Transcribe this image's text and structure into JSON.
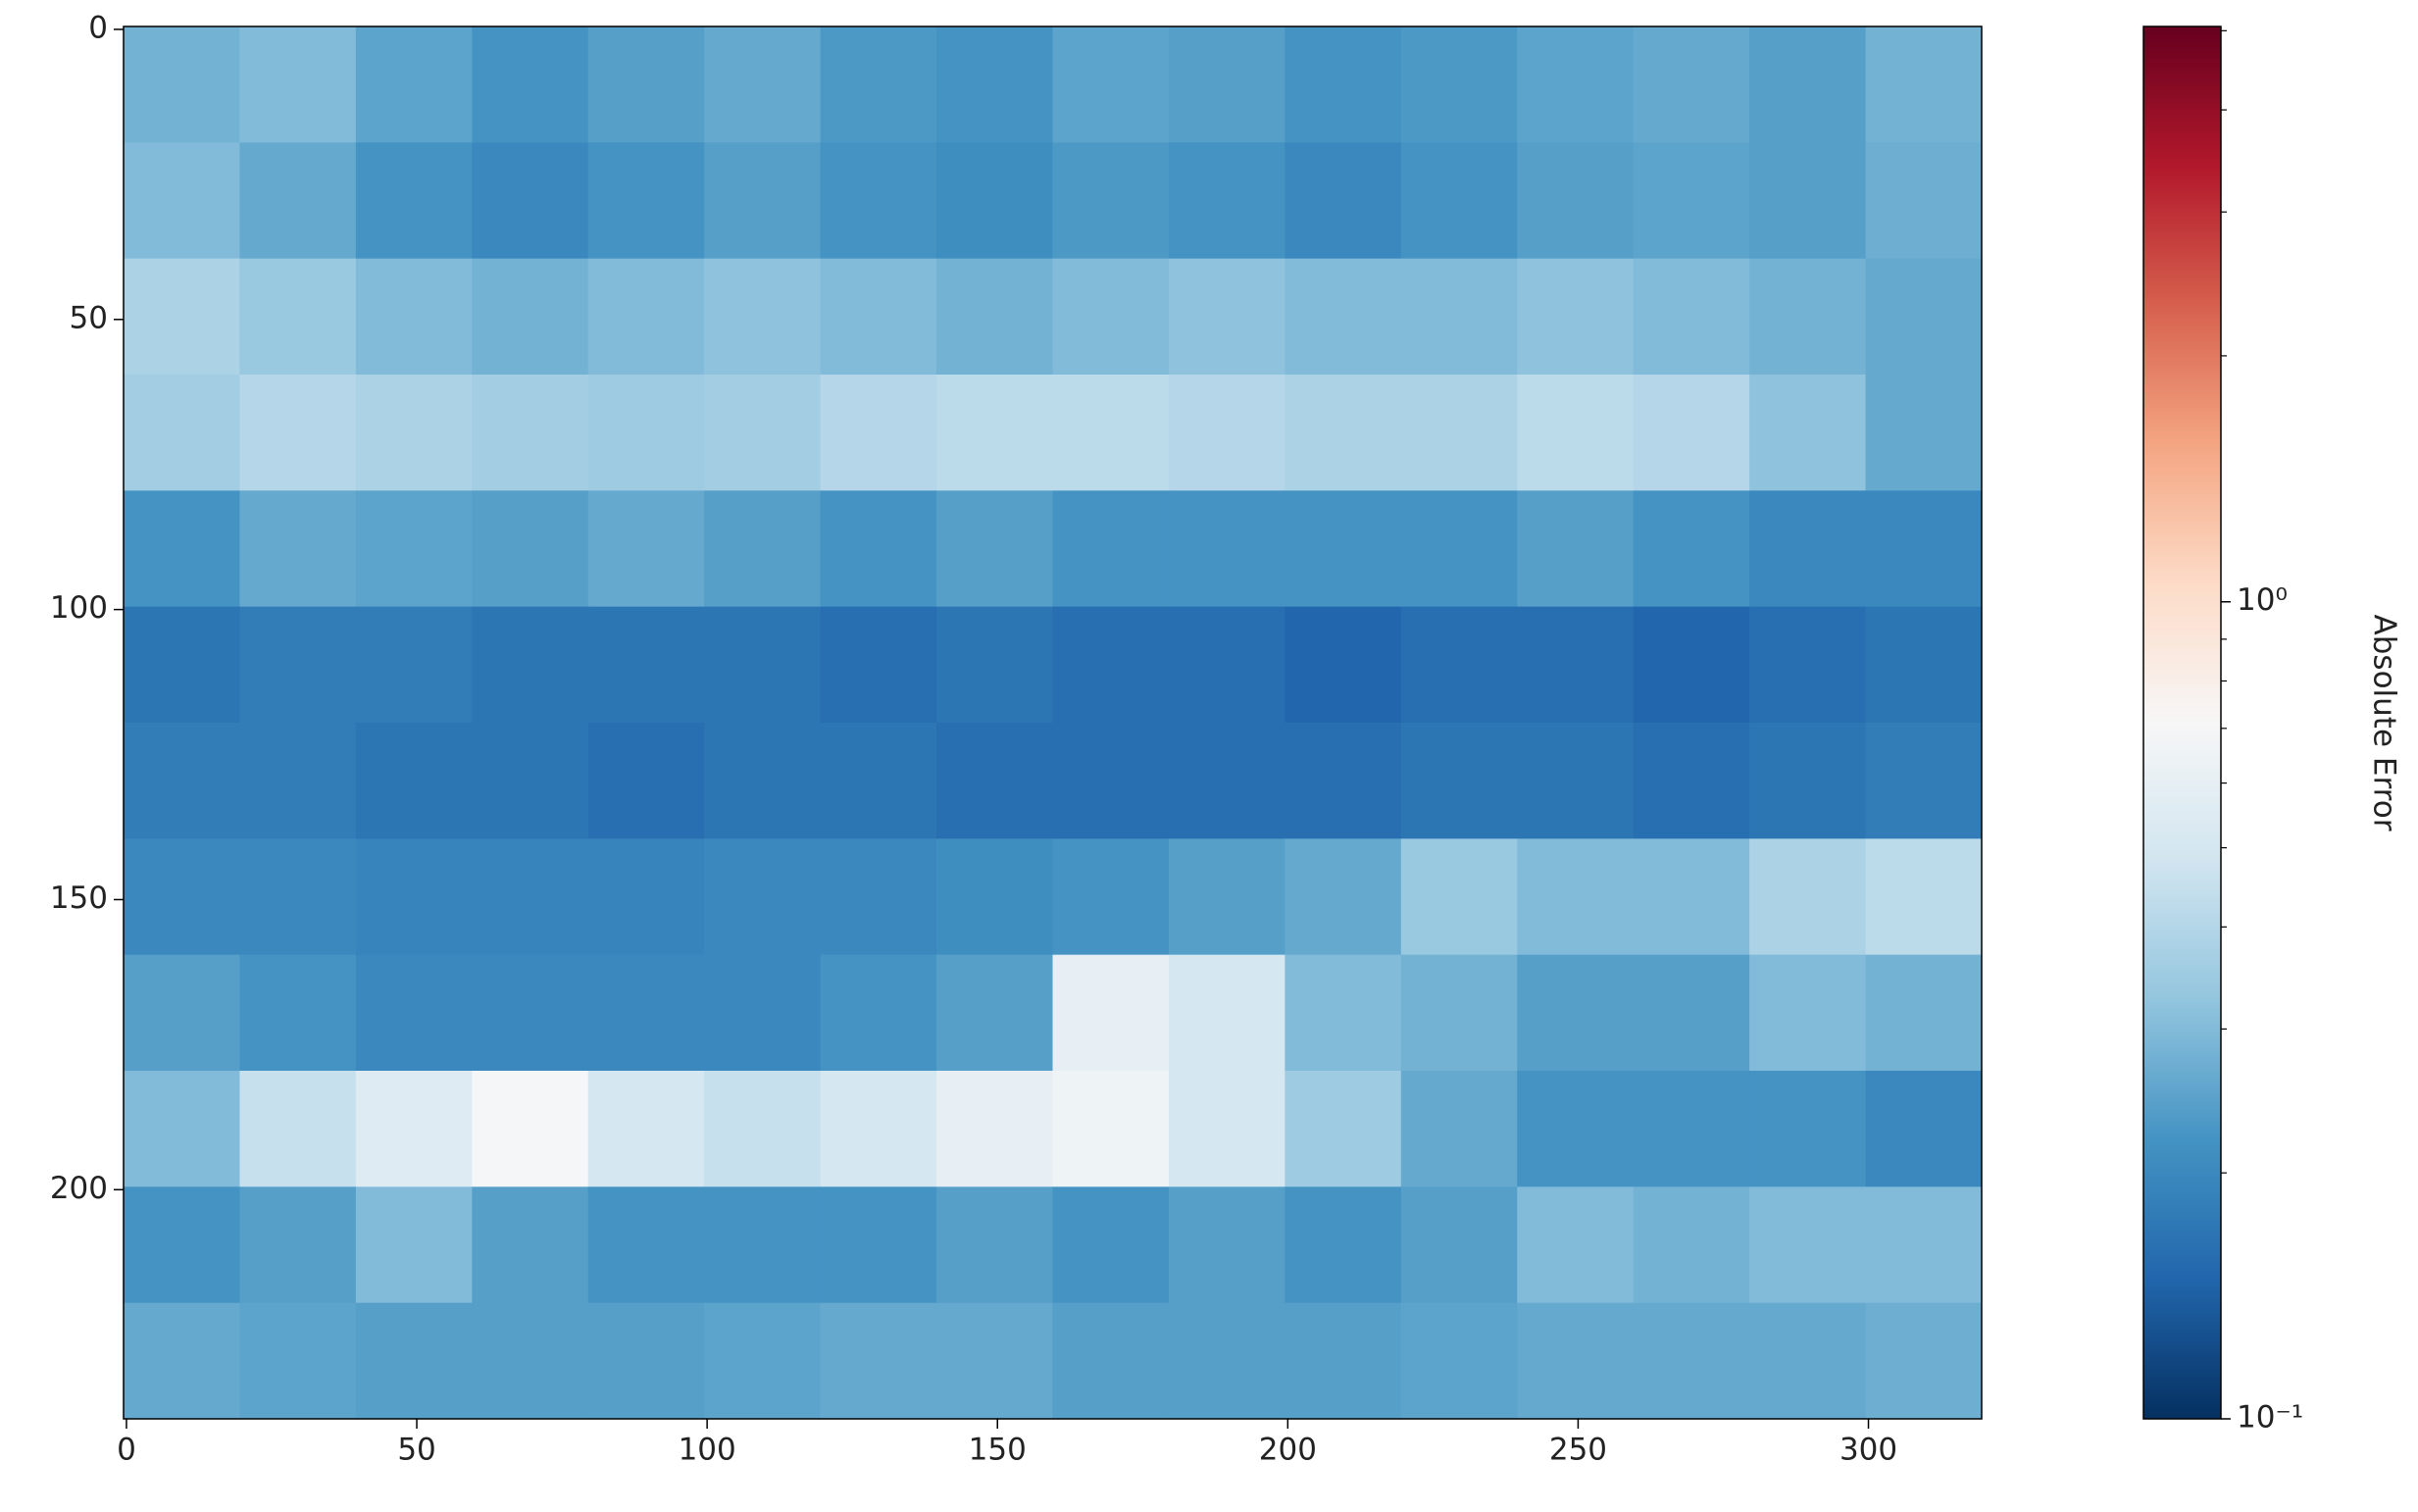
{
  "chart_data": {
    "type": "heatmap",
    "xlim": [
      -0.5,
      319.5
    ],
    "xticks": [
      0,
      50,
      100,
      150,
      200,
      250,
      300
    ],
    "ylim": [
      -0.5,
      239.5
    ],
    "y_inverted": true,
    "yticks": [
      0,
      50,
      100,
      150,
      200
    ],
    "values": [
      [
        0.28,
        0.3,
        0.25,
        0.22,
        0.24,
        0.26,
        0.23,
        0.22,
        0.25,
        0.24,
        0.22,
        0.23,
        0.25,
        0.26,
        0.24,
        0.28
      ],
      [
        0.3,
        0.26,
        0.22,
        0.2,
        0.22,
        0.24,
        0.22,
        0.21,
        0.23,
        0.22,
        0.2,
        0.22,
        0.24,
        0.25,
        0.24,
        0.27
      ],
      [
        0.38,
        0.34,
        0.3,
        0.28,
        0.3,
        0.32,
        0.3,
        0.28,
        0.3,
        0.32,
        0.3,
        0.3,
        0.32,
        0.3,
        0.28,
        0.26
      ],
      [
        0.36,
        0.4,
        0.38,
        0.36,
        0.35,
        0.36,
        0.4,
        0.42,
        0.42,
        0.4,
        0.38,
        0.38,
        0.42,
        0.4,
        0.32,
        0.26
      ],
      [
        0.22,
        0.26,
        0.25,
        0.24,
        0.26,
        0.24,
        0.22,
        0.24,
        0.22,
        0.22,
        0.22,
        0.22,
        0.24,
        0.22,
        0.2,
        0.2
      ],
      [
        0.17,
        0.18,
        0.18,
        0.17,
        0.17,
        0.17,
        0.16,
        0.17,
        0.16,
        0.16,
        0.15,
        0.16,
        0.16,
        0.15,
        0.16,
        0.17
      ],
      [
        0.18,
        0.18,
        0.17,
        0.17,
        0.16,
        0.17,
        0.17,
        0.16,
        0.16,
        0.16,
        0.16,
        0.17,
        0.17,
        0.16,
        0.17,
        0.18
      ],
      [
        0.2,
        0.2,
        0.19,
        0.19,
        0.19,
        0.2,
        0.2,
        0.21,
        0.22,
        0.24,
        0.26,
        0.34,
        0.3,
        0.3,
        0.38,
        0.42
      ],
      [
        0.24,
        0.22,
        0.2,
        0.2,
        0.2,
        0.2,
        0.22,
        0.24,
        0.6,
        0.5,
        0.3,
        0.28,
        0.24,
        0.24,
        0.3,
        0.28
      ],
      [
        0.3,
        0.45,
        0.55,
        0.7,
        0.5,
        0.45,
        0.5,
        0.6,
        0.65,
        0.5,
        0.35,
        0.26,
        0.22,
        0.22,
        0.22,
        0.2
      ],
      [
        0.22,
        0.24,
        0.3,
        0.24,
        0.22,
        0.22,
        0.22,
        0.24,
        0.22,
        0.24,
        0.22,
        0.24,
        0.3,
        0.28,
        0.3,
        0.3
      ],
      [
        0.26,
        0.25,
        0.24,
        0.24,
        0.24,
        0.25,
        0.26,
        0.26,
        0.24,
        0.24,
        0.24,
        0.25,
        0.26,
        0.26,
        0.26,
        0.27
      ]
    ],
    "colormap": [
      "#053061",
      "#2166ac",
      "#4393c3",
      "#92c5de",
      "#d1e5f0",
      "#f7f7f7",
      "#fddbc7",
      "#f4a582",
      "#d6604d",
      "#b2182b",
      "#67001f"
    ],
    "colorbar": {
      "label": "Absolute Error",
      "log": true,
      "clim": [
        0.1,
        5.06
      ],
      "ticks": [
        {
          "value": 0.1,
          "label": "10⁻¹"
        },
        {
          "value": 1,
          "label": "10⁰"
        }
      ],
      "minor_ticks": [
        0.2,
        0.3,
        0.4,
        0.5,
        0.6,
        0.7,
        0.8,
        0.9,
        2,
        3,
        4,
        5
      ]
    }
  }
}
